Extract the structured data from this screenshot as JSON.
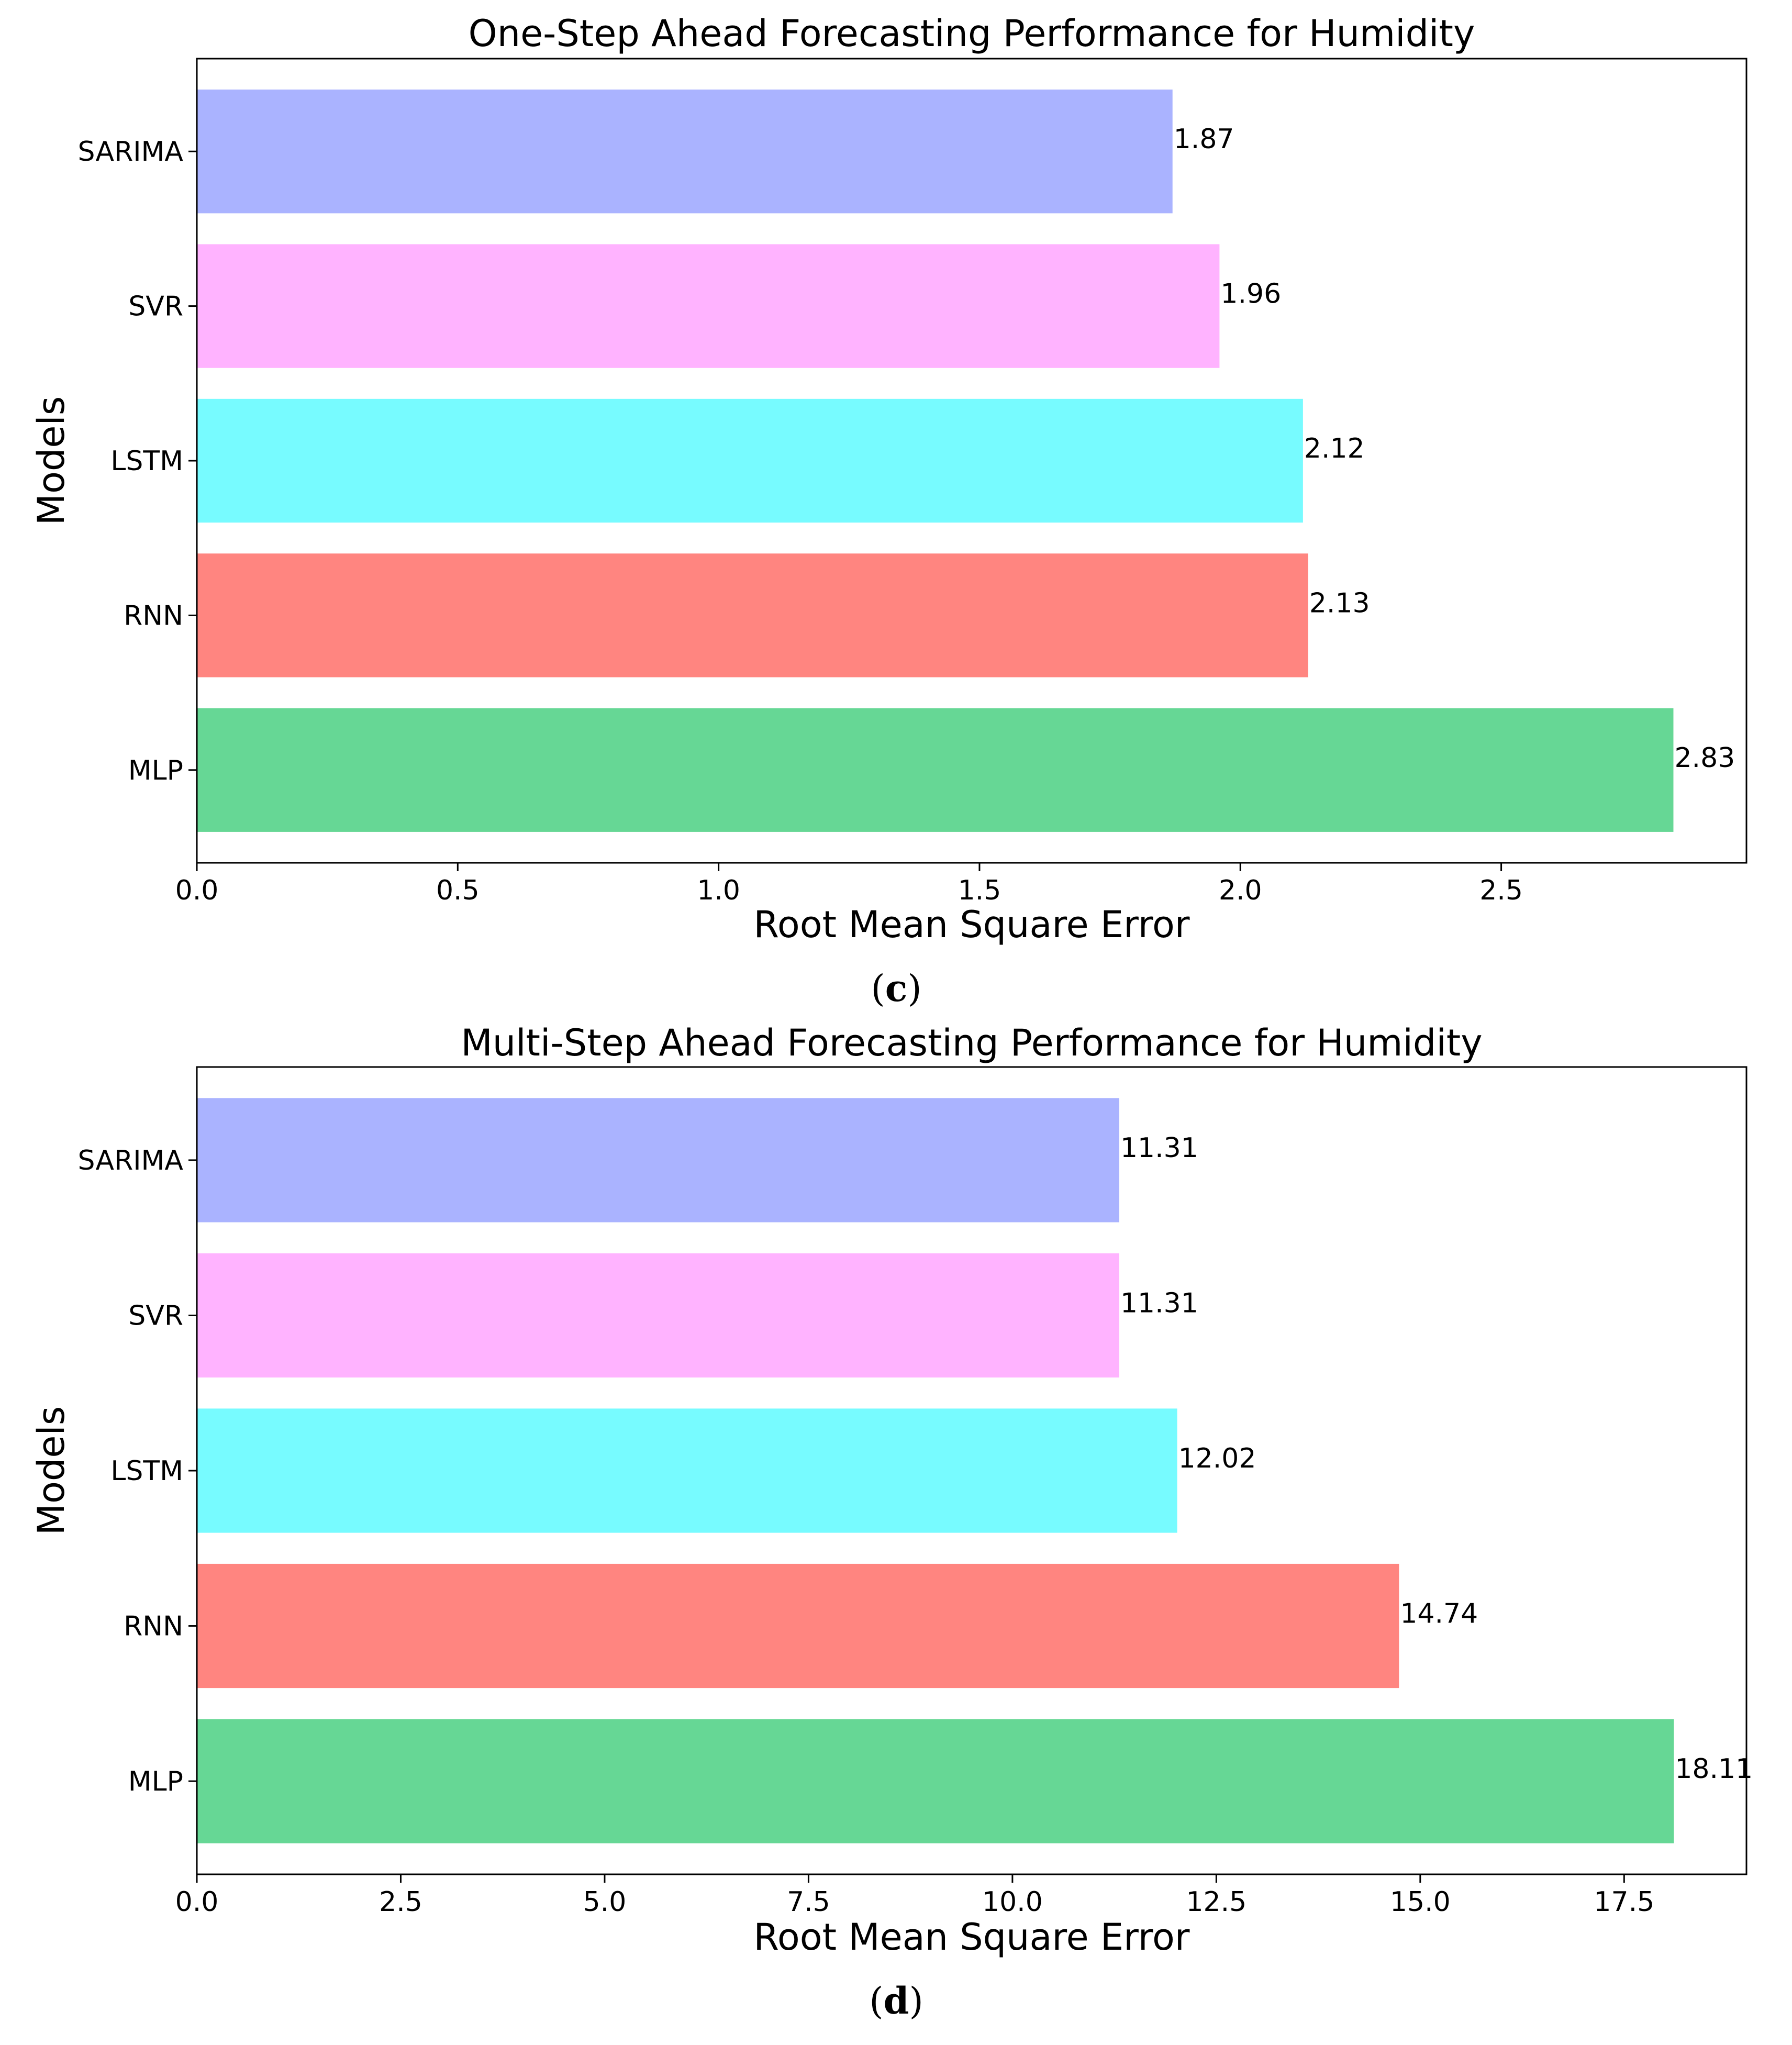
{
  "chart_data": [
    {
      "type": "bar",
      "orientation": "horizontal",
      "title": "One-Step Ahead Forecasting Performance for Humidity",
      "xlabel": "Root Mean Square Error",
      "ylabel": "Models",
      "categories": [
        "SARIMA",
        "SVR",
        "LSTM",
        "RNN",
        "MLP"
      ],
      "values": [
        1.87,
        1.96,
        2.12,
        2.13,
        2.83
      ],
      "value_labels": [
        "1.87",
        "1.96",
        "2.12",
        "2.13",
        "2.83"
      ],
      "colors": [
        "#aab3ff",
        "#ffb3ff",
        "#77fbff",
        "#ff8580",
        "#66d795"
      ],
      "xlim": [
        0,
        2.97
      ],
      "xticks": [
        0.0,
        0.5,
        1.0,
        1.5,
        2.0,
        2.5
      ],
      "xtick_labels": [
        "0.0",
        "0.5",
        "1.0",
        "1.5",
        "2.0",
        "2.5"
      ],
      "grid": false,
      "caption": {
        "open": "(",
        "letter": "c",
        "close": ")"
      }
    },
    {
      "type": "bar",
      "orientation": "horizontal",
      "title": "Multi-Step Ahead Forecasting Performance for Humidity",
      "xlabel": "Root Mean Square Error",
      "ylabel": "Models",
      "categories": [
        "SARIMA",
        "SVR",
        "LSTM",
        "RNN",
        "MLP"
      ],
      "values": [
        11.31,
        11.31,
        12.02,
        14.74,
        18.11
      ],
      "value_labels": [
        "11.31",
        "11.31",
        "12.02",
        "14.74",
        "18.11"
      ],
      "colors": [
        "#aab3ff",
        "#ffb3ff",
        "#77fbff",
        "#ff8580",
        "#66d795"
      ],
      "xlim": [
        0,
        19.0
      ],
      "xticks": [
        0.0,
        2.5,
        5.0,
        7.5,
        10.0,
        12.5,
        15.0,
        17.5
      ],
      "xtick_labels": [
        "0.0",
        "2.5",
        "5.0",
        "7.5",
        "10.0",
        "12.5",
        "15.0",
        "17.5"
      ],
      "grid": false,
      "caption": {
        "open": "(",
        "letter": "d",
        "close": ")"
      }
    }
  ]
}
